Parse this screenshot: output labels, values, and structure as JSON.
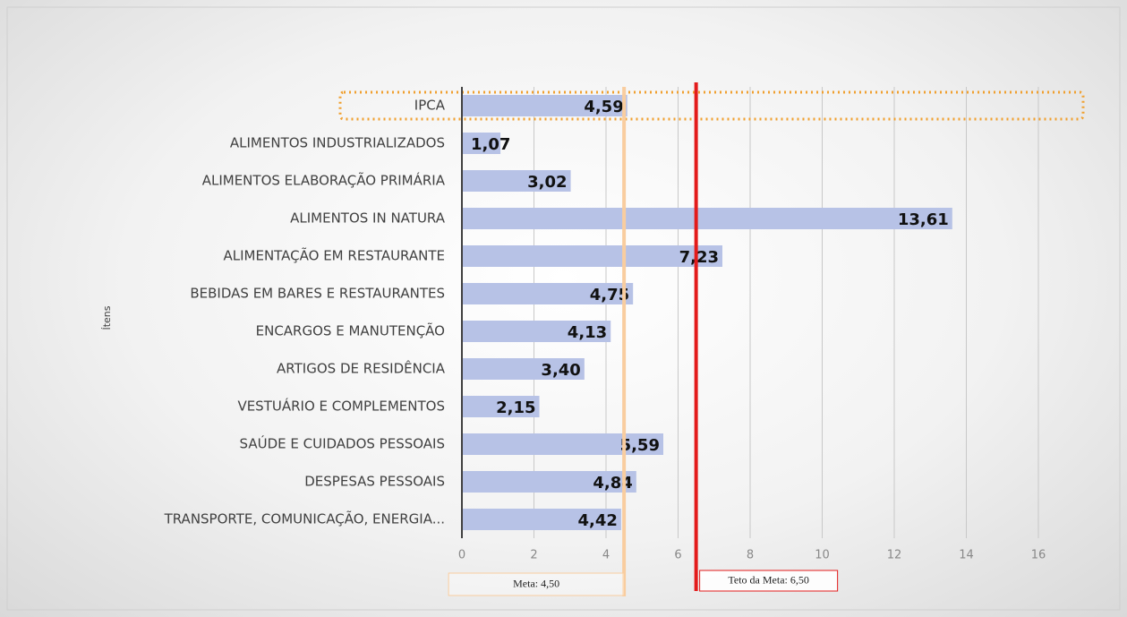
{
  "chart_data": {
    "type": "bar",
    "orientation": "horizontal",
    "y_label": "Ítens",
    "categories": [
      "IPCA",
      "ALIMENTOS INDUSTRIALIZADOS",
      "ALIMENTOS ELABORAÇÃO PRIMÁRIA",
      "ALIMENTOS IN NATURA",
      "ALIMENTAÇÃO EM RESTAURANTE",
      "BEBIDAS EM BARES E RESTAURANTES",
      "ENCARGOS E MANUTENÇÃO",
      "ARTIGOS DE RESIDÊNCIA",
      "VESTUÁRIO E COMPLEMENTOS",
      "SAÚDE E CUIDADOS PESSOAIS",
      "DESPESAS PESSOAIS",
      "TRANSPORTE, COMUNICAÇÃO, ENERGIA..."
    ],
    "values": [
      4.59,
      1.07,
      3.02,
      13.61,
      7.23,
      4.75,
      4.13,
      3.4,
      2.15,
      5.59,
      4.84,
      4.42
    ],
    "value_labels": [
      "4,59",
      "1,07",
      "3,02",
      "13,61",
      "7,23",
      "4,75",
      "4,13",
      "3,40",
      "2,15",
      "5,59",
      "4,84",
      "4,42"
    ],
    "color": "#b7c2e6",
    "xlim": [
      0,
      17
    ],
    "xticks": [
      0,
      2,
      4,
      6,
      8,
      10,
      12,
      14,
      16
    ],
    "grid": true,
    "reference_lines": [
      {
        "value": 4.5,
        "label": "Meta: 4,50",
        "color": "#f9cd9f"
      },
      {
        "value": 6.5,
        "label": "Teto da Meta: 6,50",
        "color": "#e31b1b"
      }
    ]
  }
}
